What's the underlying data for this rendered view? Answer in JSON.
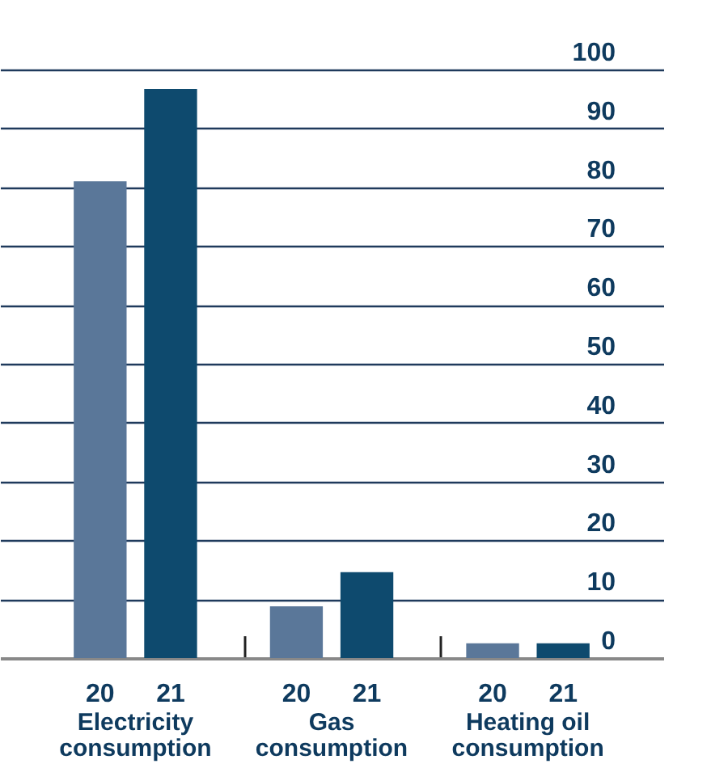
{
  "chart_data": {
    "type": "bar",
    "categories": [
      "Electricity consumption",
      "Gas consumption",
      "Heating oil consumption"
    ],
    "series": [
      {
        "name": "20",
        "color": "#5a7799",
        "values": [
          81,
          8.8,
          2.5
        ]
      },
      {
        "name": "21",
        "color": "#0e4a6e",
        "values": [
          96.7,
          14.6,
          2.5
        ]
      }
    ],
    "ylim": [
      0,
      100
    ],
    "yticks": [
      0,
      10,
      20,
      30,
      40,
      50,
      60,
      70,
      80,
      90,
      100
    ],
    "grid": "y",
    "legend": false
  }
}
